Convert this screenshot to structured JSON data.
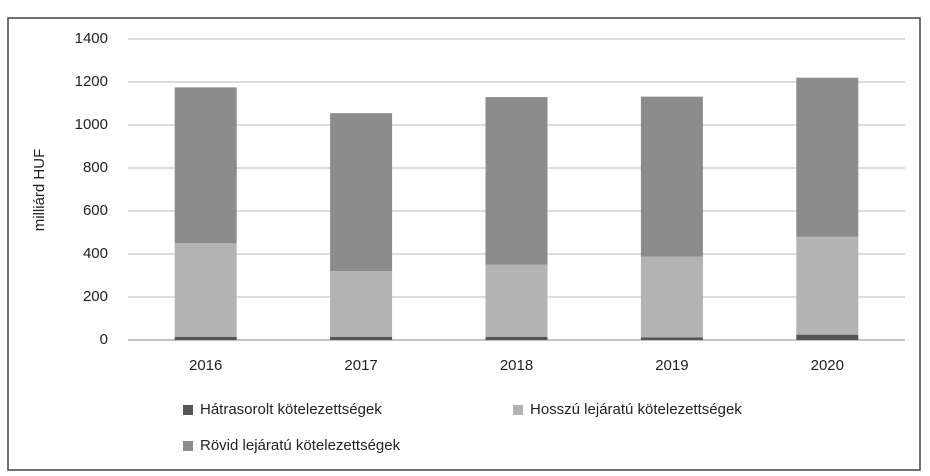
{
  "chart_data": {
    "type": "stacked_bar",
    "ylabel": "milliárd HUF",
    "categories": [
      "2016",
      "2017",
      "2018",
      "2019",
      "2020"
    ],
    "series": [
      {
        "name": "Hátrasorolt kötelezettségek",
        "color": "#555555",
        "values": [
          15,
          15,
          15,
          12,
          25
        ]
      },
      {
        "name": "Hosszú lejáratú kötelezettségek",
        "color": "#b3b3b3",
        "values": [
          435,
          305,
          335,
          375,
          455
        ]
      },
      {
        "name": "Rövid lejáratú kötelezettségek",
        "color": "#8c8c8c",
        "values": [
          725,
          735,
          780,
          745,
          740
        ]
      }
    ],
    "ylim": [
      0,
      1400
    ],
    "yticks": [
      0,
      200,
      400,
      600,
      800,
      1000,
      1200,
      1400
    ],
    "grid": true
  }
}
